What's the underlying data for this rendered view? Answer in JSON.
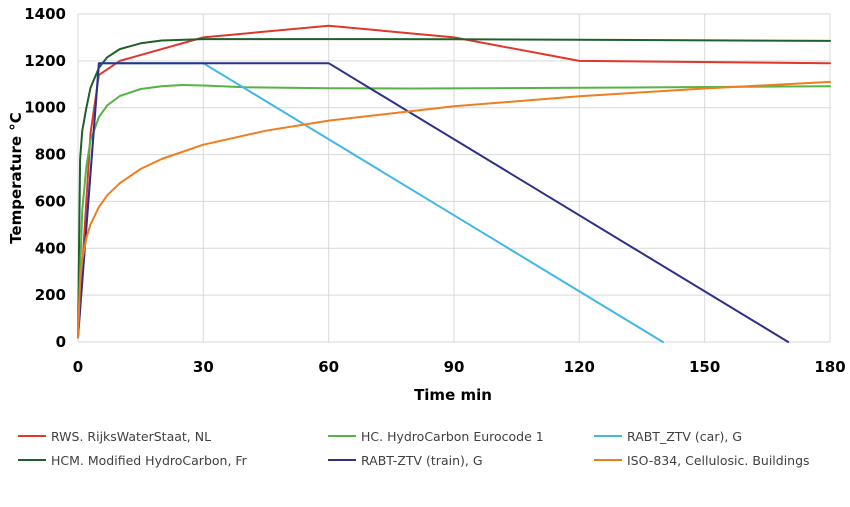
{
  "chart_data": {
    "type": "line",
    "title": "",
    "xlabel": "Time min",
    "ylabel": "Temperature °C",
    "xlim": [
      0,
      180
    ],
    "ylim": [
      0,
      1400
    ],
    "x_ticks": [
      "0",
      "30",
      "60",
      "90",
      "120",
      "150",
      "180"
    ],
    "y_ticks": [
      "0",
      "200",
      "400",
      "600",
      "800",
      "1000",
      "1200",
      "1400"
    ],
    "grid": "vertical and horizontal",
    "legend_position": "bottom",
    "series": [
      {
        "name": "RWS. RijksWaterStaat, NL",
        "color": "#e0362c",
        "x": [
          0,
          3,
          5,
          10,
          30,
          60,
          90,
          120,
          180
        ],
        "y": [
          20,
          890,
          1140,
          1200,
          1300,
          1350,
          1300,
          1200,
          1190
        ]
      },
      {
        "name": "HCM. Modified HydroCarbon, Fr",
        "color": "#1f5f2b",
        "x": [
          0,
          0.5,
          1,
          2,
          3,
          5,
          7,
          10,
          15,
          20,
          30,
          60,
          90,
          120,
          180
        ],
        "y": [
          20,
          780,
          900,
          1000,
          1085,
          1170,
          1215,
          1250,
          1275,
          1287,
          1293,
          1293,
          1292,
          1290,
          1285
        ]
      },
      {
        "name": "HC. HydroCarbon Eurocode 1",
        "color": "#55b443",
        "x": [
          0,
          1,
          2,
          3,
          5,
          7,
          10,
          15,
          20,
          25,
          30,
          40,
          60,
          80,
          120,
          180
        ],
        "y": [
          20,
          560,
          750,
          860,
          960,
          1010,
          1050,
          1080,
          1092,
          1097,
          1095,
          1087,
          1083,
          1082,
          1085,
          1092
        ]
      },
      {
        "name": "RABT_ZTV (car), G",
        "color": "#3fb7e8",
        "x": [
          0,
          5,
          30,
          140
        ],
        "y": [
          20,
          1190,
          1190,
          0
        ]
      },
      {
        "name": "RABT-ZTV (train), G",
        "color": "#2e3089",
        "x": [
          0,
          5,
          60,
          170
        ],
        "y": [
          20,
          1190,
          1190,
          0
        ]
      },
      {
        "name": "ISO-834, Cellulosic. Buildings",
        "color": "#f07d20",
        "x": [
          0,
          0.5,
          1,
          2,
          3,
          5,
          7,
          10,
          15,
          20,
          30,
          45,
          60,
          90,
          120,
          150,
          180
        ],
        "y": [
          20,
          260,
          349,
          445,
          502,
          576,
          626,
          678,
          739,
          781,
          842,
          902,
          945,
          1006,
          1049,
          1082,
          1110
        ]
      }
    ]
  }
}
